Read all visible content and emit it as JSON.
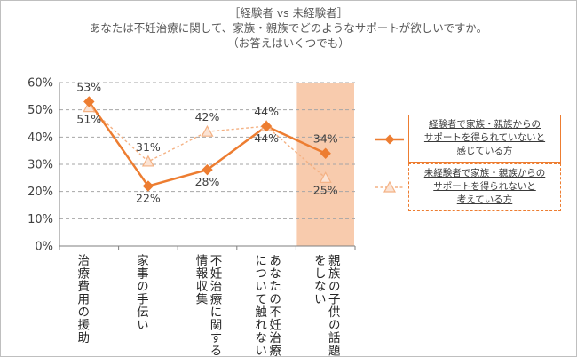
{
  "titles": {
    "line1": "［経験者 vs 未経験者］",
    "line2": "あなたは不妊治療に関して、家族・親族でどのようなサポートが欲しいですか。",
    "line3": "（お答えはいくつでも）"
  },
  "chart_data": {
    "type": "line",
    "categories": [
      "治療費用の援助",
      "家事の手伝い",
      "不妊治療に関する情報収集",
      "あなたの不妊治療について触れない",
      "親族の子供の話題をしない"
    ],
    "category_lines": [
      [
        "治療費用の",
        "援助"
      ],
      [
        "家事の",
        "手伝い"
      ],
      [
        "不妊治療に",
        "関する情報収集"
      ],
      [
        "あなたの不妊治療に",
        "ついて触れない"
      ],
      [
        "親族の子供の",
        "話題をしない"
      ]
    ],
    "highlighted_category": "親族の子供の話題をしない",
    "ylim": [
      0,
      60
    ],
    "yticks": [
      "0%",
      "10%",
      "20%",
      "30%",
      "40%",
      "50%",
      "60%"
    ],
    "grid": true,
    "legend_position": "right",
    "series": [
      {
        "name": "経験者で家族・親族からのサポートを得られていないと感じている方",
        "legend_lines": [
          "経験者で家族・親族からの",
          "サポートを得られていないと",
          "感じている方"
        ],
        "values": [
          53,
          22,
          28,
          44,
          34
        ],
        "labels": [
          "53%",
          "22%",
          "28%",
          "44%",
          "34%"
        ],
        "color": "#ed7d31",
        "style": "solid",
        "marker": "diamond"
      },
      {
        "name": "未経験者で家族・親族からのサポートを得られないと考えている方",
        "legend_lines": [
          "未経験者で家族・親族からの",
          "サポートを得られないと",
          "考えている方"
        ],
        "values": [
          51,
          31,
          42,
          44,
          25
        ],
        "labels": [
          "51%",
          "31%",
          "42%",
          "44%",
          "25%"
        ],
        "color": "#f4b183",
        "style": "dashed",
        "marker": "triangle"
      }
    ]
  },
  "colors": {
    "highlight": "#f8cbad",
    "grid": "#a6a6a6",
    "axis": "#7f7f7f"
  }
}
